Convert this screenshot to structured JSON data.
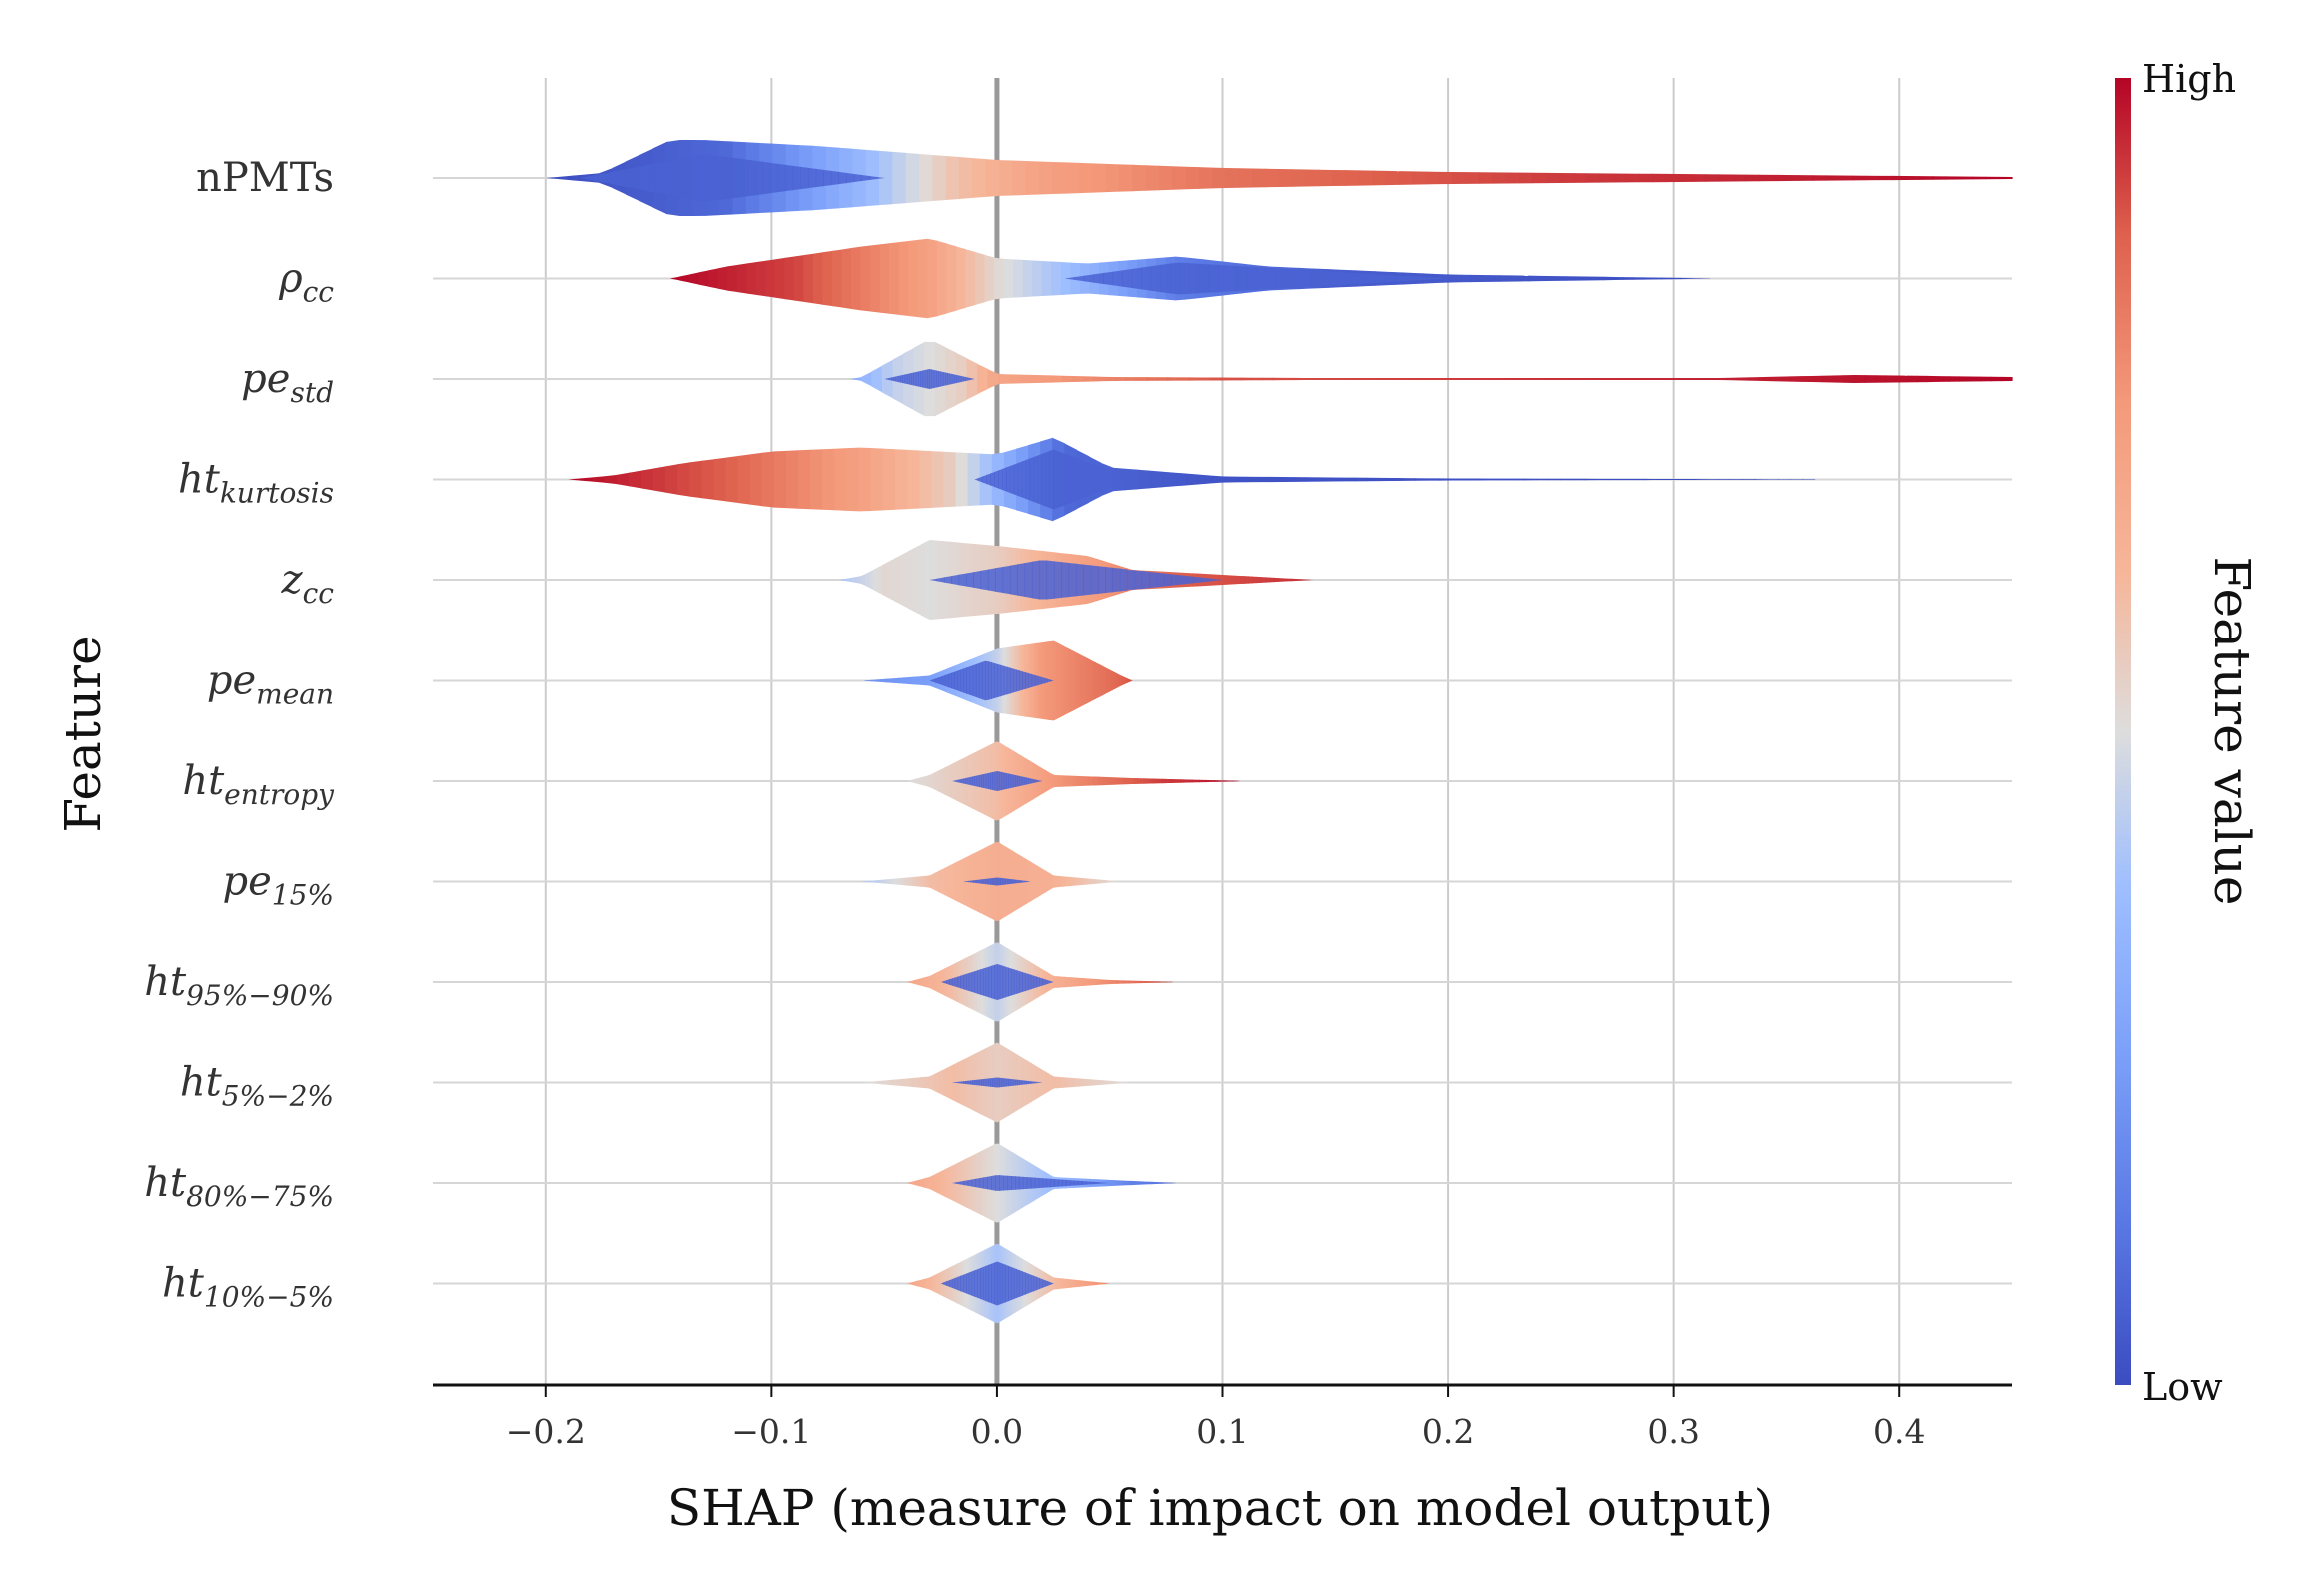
{
  "chart_data": {
    "type": "violin",
    "xlabel": "SHAP (measure of impact on model output)",
    "ylabel": "Feature",
    "xlim": [
      -0.25,
      0.45
    ],
    "xticks": [
      {
        "value": -0.2,
        "label": "−0.2"
      },
      {
        "value": -0.1,
        "label": "−0.1"
      },
      {
        "value": 0.0,
        "label": "0.0"
      },
      {
        "value": 0.1,
        "label": "0.1"
      },
      {
        "value": 0.2,
        "label": "0.2"
      },
      {
        "value": 0.3,
        "label": "0.3"
      },
      {
        "value": 0.4,
        "label": "0.4"
      }
    ],
    "grid": true,
    "colorbar": {
      "title": "Feature value",
      "high_label": "High",
      "low_label": "Low",
      "colors": {
        "high": "#b40426",
        "mid": "#dddddd",
        "low": "#3b4cc0"
      }
    },
    "features": [
      {
        "base": "nPMTs",
        "sub": "",
        "italic": false,
        "range": [
          -0.2,
          0.45
        ],
        "profile": [
          [
            -0.2,
            0
          ],
          [
            -0.175,
            0.05
          ],
          [
            -0.145,
            0.38
          ],
          [
            -0.13,
            0.38
          ],
          [
            -0.08,
            0.32
          ],
          [
            0,
            0.18
          ],
          [
            0.1,
            0.1
          ],
          [
            0.2,
            0.06
          ],
          [
            0.3,
            0.04
          ],
          [
            0.4,
            0.02
          ],
          [
            0.45,
            0.01
          ]
        ],
        "color_profile": [
          [
            -0.2,
            0.0
          ],
          [
            -0.12,
            0.08
          ],
          [
            -0.06,
            0.35
          ],
          [
            -0.02,
            0.58
          ],
          [
            0.02,
            0.72
          ],
          [
            0.1,
            0.84
          ],
          [
            0.25,
            0.93
          ],
          [
            0.45,
            1.0
          ]
        ],
        "inner": {
          "side": "low",
          "range": [
            -0.185,
            -0.05
          ],
          "max": 0.24,
          "peak": -0.13
        }
      },
      {
        "base": "ρ",
        "sub": "cc",
        "italic": true,
        "range": [
          -0.145,
          0.32
        ],
        "profile": [
          [
            -0.145,
            0
          ],
          [
            -0.12,
            0.12
          ],
          [
            -0.06,
            0.32
          ],
          [
            -0.03,
            0.4
          ],
          [
            0,
            0.2
          ],
          [
            0.04,
            0.15
          ],
          [
            0.08,
            0.22
          ],
          [
            0.12,
            0.12
          ],
          [
            0.2,
            0.04
          ],
          [
            0.26,
            0.02
          ],
          [
            0.32,
            0
          ]
        ],
        "color_profile": [
          [
            -0.145,
            1.0
          ],
          [
            -0.09,
            0.92
          ],
          [
            -0.03,
            0.72
          ],
          [
            0.0,
            0.52
          ],
          [
            0.03,
            0.38
          ],
          [
            0.08,
            0.14
          ],
          [
            0.15,
            0.05
          ],
          [
            0.32,
            0.0
          ]
        ],
        "inner": {
          "side": "low",
          "range": [
            0.03,
            0.2
          ],
          "max": 0.16,
          "peak": 0.08
        }
      },
      {
        "base": "pe",
        "sub": "std",
        "italic": true,
        "range": [
          -0.065,
          0.45
        ],
        "profile": [
          [
            -0.065,
            0
          ],
          [
            -0.06,
            0.02
          ],
          [
            -0.03,
            0.4
          ],
          [
            0,
            0.05
          ],
          [
            0.05,
            0.02
          ],
          [
            0.14,
            0.01
          ],
          [
            0.32,
            0.01
          ],
          [
            0.38,
            0.04
          ],
          [
            0.45,
            0.02
          ]
        ],
        "color_profile": [
          [
            -0.065,
            0.3
          ],
          [
            -0.045,
            0.45
          ],
          [
            -0.03,
            0.5
          ],
          [
            -0.015,
            0.55
          ],
          [
            0.0,
            0.7
          ],
          [
            0.1,
            0.9
          ],
          [
            0.45,
            1.0
          ]
        ],
        "inner": {
          "side": "low",
          "range": [
            -0.05,
            -0.01
          ],
          "max": 0.1,
          "peak": -0.03
        }
      },
      {
        "base": "ht",
        "sub": "kurtosis",
        "italic": true,
        "range": [
          -0.19,
          0.4
        ],
        "profile": [
          [
            -0.19,
            0
          ],
          [
            -0.17,
            0.04
          ],
          [
            -0.14,
            0.16
          ],
          [
            -0.1,
            0.28
          ],
          [
            -0.06,
            0.32
          ],
          [
            0,
            0.25
          ],
          [
            0.025,
            0.42
          ],
          [
            0.05,
            0.12
          ],
          [
            0.1,
            0.03
          ],
          [
            0.2,
            0.01
          ],
          [
            0.4,
            0
          ]
        ],
        "color_profile": [
          [
            -0.19,
            1.0
          ],
          [
            -0.12,
            0.88
          ],
          [
            -0.06,
            0.72
          ],
          [
            -0.02,
            0.55
          ],
          [
            0.0,
            0.35
          ],
          [
            0.03,
            0.08
          ],
          [
            0.1,
            0.02
          ],
          [
            0.4,
            0.0
          ]
        ],
        "inner": {
          "side": "low",
          "range": [
            -0.01,
            0.06
          ],
          "max": 0.3,
          "peak": 0.025
        }
      },
      {
        "base": "z",
        "sub": "cc",
        "italic": true,
        "range": [
          -0.07,
          0.14
        ],
        "profile": [
          [
            -0.07,
            0
          ],
          [
            -0.06,
            0.04
          ],
          [
            -0.03,
            0.4
          ],
          [
            0,
            0.34
          ],
          [
            0.04,
            0.24
          ],
          [
            0.06,
            0.1
          ],
          [
            0.1,
            0.05
          ],
          [
            0.14,
            0
          ]
        ],
        "color_profile": [
          [
            -0.07,
            0.4
          ],
          [
            -0.05,
            0.52
          ],
          [
            -0.03,
            0.5
          ],
          [
            0.0,
            0.55
          ],
          [
            0.04,
            0.72
          ],
          [
            0.08,
            0.88
          ],
          [
            0.14,
            0.95
          ]
        ],
        "inner": {
          "side": "low",
          "range": [
            -0.03,
            0.1
          ],
          "max": 0.2,
          "peak": 0.02
        }
      },
      {
        "base": "pe",
        "sub": "mean",
        "italic": true,
        "range": [
          -0.06,
          0.06
        ],
        "profile": [
          [
            -0.06,
            0
          ],
          [
            -0.03,
            0.05
          ],
          [
            0,
            0.32
          ],
          [
            0.025,
            0.4
          ],
          [
            0.055,
            0.05
          ],
          [
            0.06,
            0
          ]
        ],
        "color_profile": [
          [
            -0.06,
            0.2
          ],
          [
            -0.03,
            0.25
          ],
          [
            0.0,
            0.45
          ],
          [
            0.02,
            0.75
          ],
          [
            0.05,
            0.85
          ],
          [
            0.06,
            0.9
          ]
        ],
        "inner": {
          "side": "low",
          "range": [
            -0.03,
            0.025
          ],
          "max": 0.2,
          "peak": -0.005
        }
      },
      {
        "base": "ht",
        "sub": "entropy",
        "italic": true,
        "range": [
          -0.04,
          0.11
        ],
        "profile": [
          [
            -0.04,
            0
          ],
          [
            -0.03,
            0.06
          ],
          [
            0,
            0.4
          ],
          [
            0.025,
            0.06
          ],
          [
            0.06,
            0.03
          ],
          [
            0.11,
            0
          ]
        ],
        "color_profile": [
          [
            -0.04,
            0.5
          ],
          [
            -0.02,
            0.55
          ],
          [
            0.0,
            0.6
          ],
          [
            0.025,
            0.75
          ],
          [
            0.07,
            0.92
          ],
          [
            0.11,
            1.0
          ]
        ],
        "inner": {
          "side": "low",
          "range": [
            -0.02,
            0.02
          ],
          "max": 0.1,
          "peak": 0.0
        }
      },
      {
        "base": "pe",
        "sub": "15%",
        "italic": true,
        "range": [
          -0.06,
          0.055
        ],
        "profile": [
          [
            -0.06,
            0
          ],
          [
            -0.03,
            0.06
          ],
          [
            0,
            0.4
          ],
          [
            0.025,
            0.06
          ],
          [
            0.055,
            0
          ]
        ],
        "color_profile": [
          [
            -0.06,
            0.4
          ],
          [
            -0.03,
            0.6
          ],
          [
            0.0,
            0.66
          ],
          [
            0.025,
            0.65
          ],
          [
            0.055,
            0.5
          ]
        ],
        "inner": {
          "side": "low",
          "range": [
            -0.015,
            0.015
          ],
          "max": 0.04,
          "peak": 0.0
        }
      },
      {
        "base": "ht",
        "sub": "95%−90%",
        "italic": true,
        "range": [
          -0.04,
          0.08
        ],
        "profile": [
          [
            -0.04,
            0
          ],
          [
            -0.03,
            0.06
          ],
          [
            0,
            0.4
          ],
          [
            0.025,
            0.06
          ],
          [
            0.05,
            0.02
          ],
          [
            0.08,
            0
          ]
        ],
        "color_profile": [
          [
            -0.04,
            0.7
          ],
          [
            -0.02,
            0.6
          ],
          [
            0.0,
            0.45
          ],
          [
            0.025,
            0.65
          ],
          [
            0.08,
            0.95
          ]
        ],
        "inner": {
          "side": "low",
          "range": [
            -0.025,
            0.025
          ],
          "max": 0.18,
          "peak": 0.0
        }
      },
      {
        "base": "ht",
        "sub": "5%−2%",
        "italic": true,
        "range": [
          -0.06,
          0.06
        ],
        "profile": [
          [
            -0.06,
            0
          ],
          [
            -0.03,
            0.06
          ],
          [
            0,
            0.4
          ],
          [
            0.025,
            0.06
          ],
          [
            0.06,
            0
          ]
        ],
        "color_profile": [
          [
            -0.06,
            0.5
          ],
          [
            -0.02,
            0.6
          ],
          [
            0.0,
            0.55
          ],
          [
            0.025,
            0.6
          ],
          [
            0.06,
            0.5
          ]
        ],
        "inner": {
          "side": "low",
          "range": [
            -0.02,
            0.02
          ],
          "max": 0.05,
          "peak": 0.0
        }
      },
      {
        "base": "ht",
        "sub": "80%−75%",
        "italic": true,
        "range": [
          -0.04,
          0.08
        ],
        "profile": [
          [
            -0.04,
            0
          ],
          [
            -0.03,
            0.06
          ],
          [
            0,
            0.4
          ],
          [
            0.025,
            0.06
          ],
          [
            0.05,
            0.03
          ],
          [
            0.08,
            0
          ]
        ],
        "color_profile": [
          [
            -0.04,
            0.7
          ],
          [
            -0.02,
            0.6
          ],
          [
            0.0,
            0.5
          ],
          [
            0.03,
            0.35
          ],
          [
            0.06,
            0.15
          ],
          [
            0.08,
            0.1
          ]
        ],
        "inner": {
          "side": "low",
          "range": [
            -0.02,
            0.05
          ],
          "max": 0.08,
          "peak": 0.0
        }
      },
      {
        "base": "ht",
        "sub": "10%−5%",
        "italic": true,
        "range": [
          -0.04,
          0.05
        ],
        "profile": [
          [
            -0.04,
            0
          ],
          [
            -0.03,
            0.06
          ],
          [
            0,
            0.4
          ],
          [
            0.025,
            0.06
          ],
          [
            0.05,
            0
          ]
        ],
        "color_profile": [
          [
            -0.04,
            0.7
          ],
          [
            -0.02,
            0.55
          ],
          [
            0.0,
            0.4
          ],
          [
            0.025,
            0.6
          ],
          [
            0.05,
            0.8
          ]
        ],
        "inner": {
          "side": "low",
          "range": [
            -0.025,
            0.025
          ],
          "max": 0.22,
          "peak": 0.0
        }
      }
    ]
  }
}
